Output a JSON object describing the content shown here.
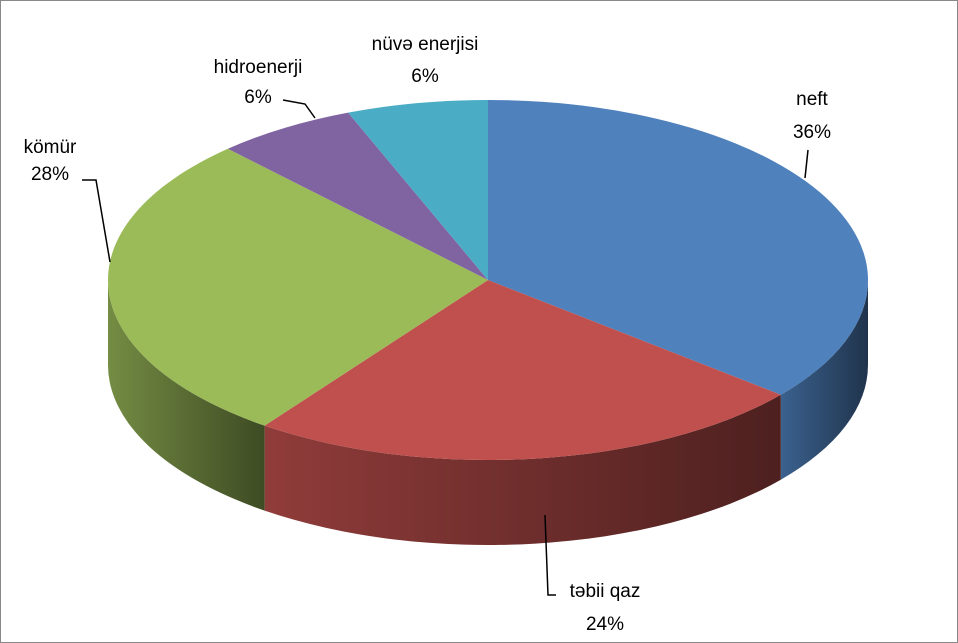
{
  "chart_data": {
    "type": "pie",
    "categories": [
      "neft",
      "təbii qaz",
      "kömür",
      "hidroenerji",
      "nüvə enerjisi"
    ],
    "values": [
      36,
      24,
      28,
      6,
      6
    ],
    "value_labels": [
      "36%",
      "24%",
      "28%",
      "6%",
      "6%"
    ],
    "colors": [
      "#4f81bd",
      "#c0504d",
      "#9bbb59",
      "#8064a2",
      "#4bacc6"
    ]
  }
}
